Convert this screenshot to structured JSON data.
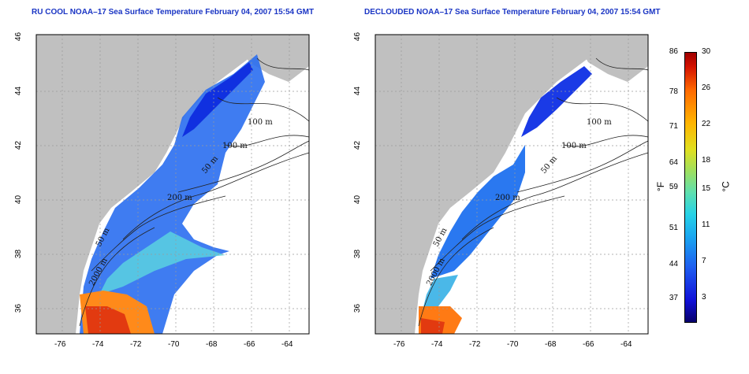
{
  "panels": [
    {
      "title": "RU COOL NOAA–17 Sea Surface Temperature February 04, 2007 15:54 GMT",
      "contour_labels": [
        "100 m",
        "100 m",
        "50 m",
        "200 m",
        "50 m",
        "2000 m"
      ]
    },
    {
      "title": "DECLOUDED NOAA–17 Sea Surface Temperature February 04, 2007 15:54 GMT",
      "contour_labels": [
        "100 m",
        "100 m",
        "50 m",
        "200 m",
        "50 m",
        "2000 m"
      ]
    }
  ],
  "axes": {
    "lat_ticks": [
      "36",
      "38",
      "40",
      "42",
      "44",
      "46"
    ],
    "lon_ticks": [
      "-76",
      "-74",
      "-72",
      "-70",
      "-68",
      "-66",
      "-64"
    ]
  },
  "legend": {
    "fahrenheit_ticks": [
      "86",
      "78",
      "71",
      "64",
      "59",
      "51",
      "44",
      "37"
    ],
    "celsius_ticks": [
      "30",
      "26",
      "22",
      "18",
      "15",
      "11",
      "7",
      "3"
    ],
    "fahrenheit_unit": "°F",
    "celsius_unit": "°C"
  },
  "colors": {
    "land": "#c0c0c0",
    "no_data": "#ffffff",
    "title": "#1a35c4",
    "grid": "#9a9a9a"
  }
}
